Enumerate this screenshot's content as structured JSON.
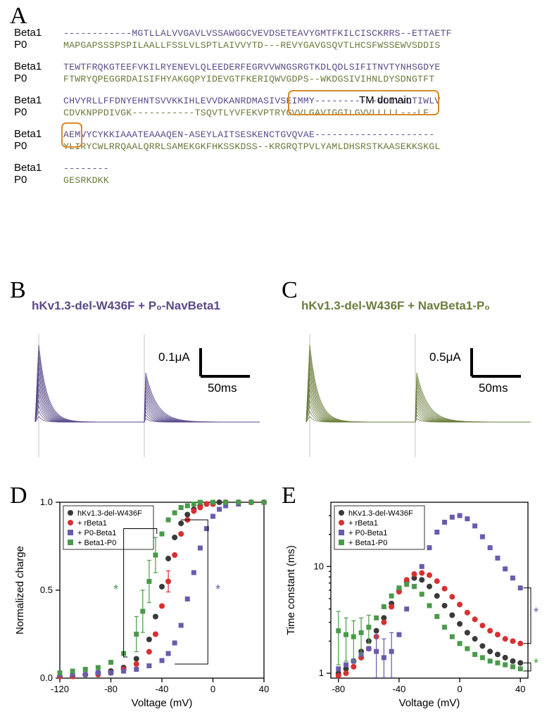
{
  "panelLabels": {
    "A": "A",
    "B": "B",
    "C": "C",
    "D": "D",
    "E": "E"
  },
  "colors": {
    "beta1": "#5a4a89",
    "p0": "#6b7e3d",
    "black": "#3a3a3a",
    "red": "#d83030",
    "purple": "#6a5aae",
    "green": "#4a9a4a",
    "tmBox": "#d88a2a"
  },
  "alignment": {
    "names": [
      "Beta1",
      "P0"
    ],
    "tm_label": "TM domain",
    "rows": [
      {
        "beta1": "------------MGTLLALVVGAVLVSSAWGGCVEVDSETEAVYGMTFKILCISCKRRS--ETTAETF",
        "p0": "MAPGAPSSSPSPILAALLFSSLVLSPTLAIVVYTD---REVYGAVGSQVTLHCSFWSSEWVSDDIS"
      },
      {
        "beta1": "TEWTFRQKGTEEFVKILRYENEVLQLEEDERFEGRVVWNGSRGTKDLQDLSIFITNVTYNHSGDYE",
        "p0": "FTWRYQPEGGRDAISIFHYAKGQPYIDEVGTFKERIQWVGDPS--WKDGSIVIHNLDYSDNGTFT"
      },
      {
        "beta1": "CHVYRLLFFDNYEHNTSVVKKIHLEVVDKANRDMASIVSEIMMY-----------VLIVVLTIWLV",
        "p0": "CDVKNPPDIVGK-----------TSQVTLYVFEKVPTRYGVVLGAVIGGILGVVLLLLL---LF"
      },
      {
        "beta1": "AEMVYCYKKIAAATEAAAQEN-ASEYLAITSESKENCTGVQVAE---------------------",
        "p0": "YLIRYCWLRRQAALQRRLSAMEKGKFHKSSKDSS--KRGRQTPVLYAMLDHSRSTKAASEKKSKGL"
      },
      {
        "beta1": "--------",
        "p0": "GESRKDKK"
      }
    ],
    "tm_box1": {
      "row": 2,
      "start_char": 40,
      "end_char": 66
    },
    "tm_box2": {
      "row": 3,
      "start_char": 0,
      "end_char": 3
    }
  },
  "panelB": {
    "title": "hKv1.3-del-W436F + P₀-NavBeta1",
    "color": "#5a4a89",
    "scale_y": "0.1μA",
    "scale_x": "50ms"
  },
  "panelC": {
    "title": "hKv1.3-del-W436F + NavBeta1-P₀",
    "color": "#6b7e3d",
    "scale_y": "0.5μA",
    "scale_x": "50ms"
  },
  "legend": {
    "items": [
      {
        "label": "hKv1.3-del-W436F",
        "color": "#3a3a3a",
        "marker": "circle"
      },
      {
        "label": "+ rBeta1",
        "color": "#d83030",
        "marker": "circle"
      },
      {
        "label": "+ P0-Beta1",
        "color": "#6a5aae",
        "marker": "square"
      },
      {
        "label": "+ Beta1-P0",
        "color": "#4a9a4a",
        "marker": "square"
      }
    ]
  },
  "panelD": {
    "xlabel": "Voltage (mV)",
    "ylabel": "Normalized charge",
    "xlim": [
      -120,
      40
    ],
    "xticks": [
      -120,
      -80,
      -40,
      0,
      40
    ],
    "ylim": [
      0,
      1
    ],
    "yticks": [
      0.0,
      0.5,
      1.0
    ],
    "series": {
      "black": [
        [
          -120,
          0.01
        ],
        [
          -110,
          0.01
        ],
        [
          -100,
          0.02
        ],
        [
          -90,
          0.03
        ],
        [
          -80,
          0.04
        ],
        [
          -70,
          0.06
        ],
        [
          -60,
          0.11
        ],
        [
          -50,
          0.22
        ],
        [
          -45,
          0.35
        ],
        [
          -40,
          0.52
        ],
        [
          -35,
          0.68
        ],
        [
          -30,
          0.8
        ],
        [
          -25,
          0.88
        ],
        [
          -20,
          0.93
        ],
        [
          -15,
          0.96
        ],
        [
          -10,
          0.98
        ],
        [
          -5,
          0.99
        ],
        [
          0,
          0.99
        ],
        [
          5,
          1.0
        ],
        [
          10,
          1.0
        ],
        [
          20,
          1.0
        ],
        [
          30,
          1.0
        ],
        [
          40,
          1.0
        ]
      ],
      "red": [
        [
          -120,
          0.01
        ],
        [
          -110,
          0.01
        ],
        [
          -100,
          0.02
        ],
        [
          -90,
          0.02
        ],
        [
          -80,
          0.03
        ],
        [
          -70,
          0.05
        ],
        [
          -60,
          0.08
        ],
        [
          -50,
          0.15
        ],
        [
          -45,
          0.25
        ],
        [
          -40,
          0.41
        ],
        [
          -35,
          0.55
        ],
        [
          -30,
          0.7
        ],
        [
          -25,
          0.82
        ],
        [
          -20,
          0.9
        ],
        [
          -15,
          0.95
        ],
        [
          -10,
          0.97
        ],
        [
          -5,
          0.99
        ],
        [
          0,
          0.99
        ],
        [
          10,
          1.0
        ],
        [
          20,
          1.0
        ],
        [
          30,
          1.0
        ],
        [
          40,
          1.0
        ]
      ],
      "purple": [
        [
          -120,
          0.02
        ],
        [
          -110,
          0.02
        ],
        [
          -100,
          0.02
        ],
        [
          -90,
          0.03
        ],
        [
          -80,
          0.03
        ],
        [
          -70,
          0.04
        ],
        [
          -60,
          0.05
        ],
        [
          -50,
          0.07
        ],
        [
          -40,
          0.1
        ],
        [
          -35,
          0.14
        ],
        [
          -30,
          0.2
        ],
        [
          -25,
          0.3
        ],
        [
          -20,
          0.45
        ],
        [
          -15,
          0.6
        ],
        [
          -10,
          0.74
        ],
        [
          -5,
          0.85
        ],
        [
          0,
          0.92
        ],
        [
          5,
          0.96
        ],
        [
          10,
          0.98
        ],
        [
          20,
          0.99
        ],
        [
          30,
          1.0
        ],
        [
          40,
          1.0
        ]
      ],
      "green": [
        [
          -120,
          0.03
        ],
        [
          -110,
          0.04
        ],
        [
          -100,
          0.05
        ],
        [
          -90,
          0.06
        ],
        [
          -80,
          0.09
        ],
        [
          -70,
          0.14
        ],
        [
          -60,
          0.25
        ],
        [
          -55,
          0.38
        ],
        [
          -50,
          0.55
        ],
        [
          -45,
          0.7
        ],
        [
          -40,
          0.82
        ],
        [
          -35,
          0.9
        ],
        [
          -30,
          0.94
        ],
        [
          -25,
          0.97
        ],
        [
          -20,
          0.98
        ],
        [
          -15,
          0.99
        ],
        [
          -10,
          1.0
        ],
        [
          0,
          1.0
        ],
        [
          10,
          1.0
        ],
        [
          20,
          1.0
        ],
        [
          30,
          1.0
        ],
        [
          40,
          1.0
        ]
      ]
    },
    "errorbars": {
      "green": [
        [
          -60,
          0.1
        ],
        [
          -55,
          0.12
        ],
        [
          -50,
          0.12
        ],
        [
          -45,
          0.1
        ]
      ],
      "red": [
        [
          -35,
          0.06
        ]
      ]
    },
    "stars": {
      "green": "*",
      "purple": "*"
    }
  },
  "panelE": {
    "xlabel": "Voltage (mV)",
    "ylabel": "Time constant (ms)",
    "xlim": [
      -85,
      45
    ],
    "xticks": [
      -80,
      -40,
      0,
      40
    ],
    "ylim_log": [
      0.9,
      40
    ],
    "yticks": [
      1,
      10
    ],
    "series": {
      "black": [
        [
          -80,
          1.0
        ],
        [
          -75,
          1.1
        ],
        [
          -70,
          1.3
        ],
        [
          -65,
          1.6
        ],
        [
          -60,
          2.0
        ],
        [
          -55,
          2.5
        ],
        [
          -50,
          3.3
        ],
        [
          -45,
          4.5
        ],
        [
          -40,
          6.0
        ],
        [
          -35,
          7.2
        ],
        [
          -30,
          7.8
        ],
        [
          -25,
          7.5
        ],
        [
          -20,
          6.5
        ],
        [
          -15,
          5.3
        ],
        [
          -10,
          4.3
        ],
        [
          -5,
          3.5
        ],
        [
          0,
          2.9
        ],
        [
          5,
          2.4
        ],
        [
          10,
          2.1
        ],
        [
          15,
          1.8
        ],
        [
          20,
          1.6
        ],
        [
          25,
          1.5
        ],
        [
          30,
          1.4
        ],
        [
          35,
          1.3
        ],
        [
          40,
          1.25
        ]
      ],
      "red": [
        [
          -80,
          0.95
        ],
        [
          -75,
          1.0
        ],
        [
          -70,
          1.15
        ],
        [
          -65,
          1.4
        ],
        [
          -60,
          1.7
        ],
        [
          -55,
          2.2
        ],
        [
          -50,
          3.0
        ],
        [
          -45,
          4.2
        ],
        [
          -40,
          5.8
        ],
        [
          -35,
          7.5
        ],
        [
          -30,
          8.5
        ],
        [
          -25,
          8.7
        ],
        [
          -20,
          8.3
        ],
        [
          -15,
          7.3
        ],
        [
          -10,
          6.2
        ],
        [
          -5,
          5.2
        ],
        [
          0,
          4.4
        ],
        [
          5,
          3.7
        ],
        [
          10,
          3.2
        ],
        [
          15,
          2.8
        ],
        [
          20,
          2.5
        ],
        [
          25,
          2.3
        ],
        [
          30,
          2.1
        ],
        [
          35,
          2.0
        ],
        [
          40,
          1.9
        ]
      ],
      "purple": [
        [
          -80,
          1.1
        ],
        [
          -75,
          1.2
        ],
        [
          -70,
          1.3
        ],
        [
          -65,
          1.5
        ],
        [
          -60,
          1.7
        ],
        [
          -55,
          1.6
        ],
        [
          -50,
          1.4
        ],
        [
          -45,
          1.6
        ],
        [
          -40,
          2.3
        ],
        [
          -35,
          4.0
        ],
        [
          -30,
          6.5
        ],
        [
          -25,
          10
        ],
        [
          -20,
          15
        ],
        [
          -15,
          21
        ],
        [
          -10,
          26
        ],
        [
          -5,
          29
        ],
        [
          0,
          30
        ],
        [
          5,
          28
        ],
        [
          10,
          24
        ],
        [
          15,
          19
        ],
        [
          20,
          15
        ],
        [
          25,
          12
        ],
        [
          30,
          9.5
        ],
        [
          35,
          7.8
        ],
        [
          40,
          6.3
        ]
      ],
      "green": [
        [
          -80,
          2.5
        ],
        [
          -75,
          2.3
        ],
        [
          -70,
          2.2
        ],
        [
          -65,
          2.4
        ],
        [
          -60,
          2.7
        ],
        [
          -55,
          3.3
        ],
        [
          -50,
          4.2
        ],
        [
          -45,
          5.3
        ],
        [
          -40,
          6.3
        ],
        [
          -35,
          6.8
        ],
        [
          -30,
          6.5
        ],
        [
          -25,
          5.5
        ],
        [
          -20,
          4.3
        ],
        [
          -15,
          3.4
        ],
        [
          -10,
          2.7
        ],
        [
          -5,
          2.2
        ],
        [
          0,
          1.9
        ],
        [
          5,
          1.7
        ],
        [
          10,
          1.5
        ],
        [
          15,
          1.4
        ],
        [
          20,
          1.3
        ],
        [
          25,
          1.25
        ],
        [
          30,
          1.2
        ],
        [
          35,
          1.15
        ],
        [
          40,
          1.1
        ]
      ]
    },
    "errorbars": {
      "purple": [
        [
          -55,
          0.7
        ],
        [
          -50,
          0.7
        ],
        [
          -45,
          0.8
        ]
      ],
      "green": [
        [
          -80,
          1.3
        ],
        [
          -75,
          1.0
        ],
        [
          -70,
          0.9
        ],
        [
          -65,
          0.9
        ],
        [
          -60,
          0.8
        ]
      ]
    },
    "stars": {
      "green": "*",
      "purple": "*"
    }
  }
}
